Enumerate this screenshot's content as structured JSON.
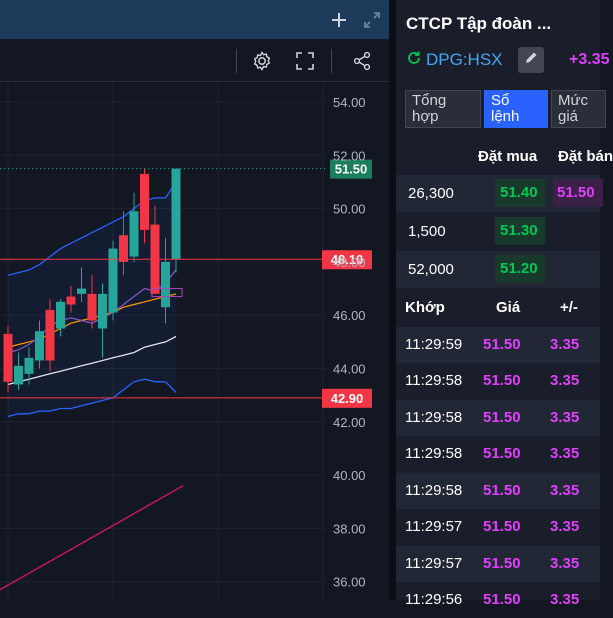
{
  "toolbar": {
    "icons": [
      "plus-icon",
      "expand-icon",
      "gear-icon",
      "fullscreen-icon",
      "share-icon"
    ]
  },
  "colors": {
    "up": "#26a69a",
    "down": "#f23645",
    "accent": "#2962ff",
    "bid_green": "#00c853",
    "ask_magenta": "#e040fb"
  },
  "chart_data": {
    "type": "candlestick",
    "y_axis": {
      "ticks": [
        "54.00",
        "52.00",
        "50.00",
        "48.00",
        "46.00",
        "44.00",
        "42.00",
        "40.00",
        "38.00",
        "36.00"
      ],
      "range": [
        35.5,
        55.5
      ]
    },
    "price_labels": [
      {
        "label": "51.50",
        "value": 51.5,
        "kind": "last"
      },
      {
        "label": "48.10",
        "value": 48.1,
        "kind": "level"
      },
      {
        "label": "42.90",
        "value": 42.9,
        "kind": "level"
      }
    ],
    "candles": [
      {
        "o": 45.3,
        "h": 45.6,
        "l": 43.1,
        "c": 43.5
      },
      {
        "o": 43.4,
        "h": 44.6,
        "l": 43.2,
        "c": 44.1
      },
      {
        "o": 43.8,
        "h": 44.8,
        "l": 43.4,
        "c": 44.4
      },
      {
        "o": 44.3,
        "h": 45.8,
        "l": 44.0,
        "c": 45.4
      },
      {
        "o": 46.2,
        "h": 46.6,
        "l": 43.9,
        "c": 44.3
      },
      {
        "o": 45.5,
        "h": 46.6,
        "l": 45.2,
        "c": 46.5
      },
      {
        "o": 46.7,
        "h": 47.1,
        "l": 46.1,
        "c": 46.4
      },
      {
        "o": 46.8,
        "h": 47.8,
        "l": 46.5,
        "c": 47.0
      },
      {
        "o": 46.8,
        "h": 47.5,
        "l": 45.5,
        "c": 45.8
      },
      {
        "o": 45.5,
        "h": 47.2,
        "l": 44.4,
        "c": 46.8
      },
      {
        "o": 46.1,
        "h": 48.8,
        "l": 45.8,
        "c": 48.5
      },
      {
        "o": 49.0,
        "h": 49.9,
        "l": 47.5,
        "c": 48.0
      },
      {
        "o": 48.2,
        "h": 50.6,
        "l": 48.0,
        "c": 49.9
      },
      {
        "o": 51.3,
        "h": 51.5,
        "l": 48.7,
        "c": 49.2
      },
      {
        "o": 49.4,
        "h": 50.1,
        "l": 46.9,
        "c": 46.8
      },
      {
        "o": 46.3,
        "h": 48.9,
        "l": 45.7,
        "c": 48.0
      },
      {
        "o": 48.1,
        "h": 51.5,
        "l": 47.6,
        "c": 51.5
      }
    ],
    "bands": {
      "upper": [
        47.5,
        47.6,
        47.7,
        47.9,
        48.2,
        48.5,
        48.7,
        48.9,
        49.1,
        49.3,
        49.5,
        49.7,
        50.0,
        50.3,
        50.4,
        50.4,
        51.0
      ],
      "lower": [
        42.2,
        42.3,
        42.3,
        42.4,
        42.4,
        42.5,
        42.5,
        42.6,
        42.7,
        42.8,
        42.9,
        43.2,
        43.5,
        43.6,
        43.5,
        43.5,
        43.1
      ]
    },
    "lines": {
      "white_ma": [
        43.4,
        43.5,
        43.6,
        43.7,
        43.8,
        43.9,
        44.0,
        44.1,
        44.2,
        44.3,
        44.4,
        44.5,
        44.6,
        44.8,
        44.9,
        45.0,
        45.2
      ],
      "orange_ma": [
        44.8,
        44.9,
        45.0,
        45.1,
        45.3,
        45.5,
        45.7,
        45.8,
        45.9,
        46.0,
        46.1,
        46.3,
        46.4,
        46.5,
        46.6,
        46.7,
        46.8
      ],
      "purple_ma": [
        44.6,
        44.7,
        44.9,
        45.2,
        45.6,
        45.8,
        45.9,
        45.8,
        45.7,
        45.9,
        46.1,
        46.4,
        46.7,
        47.0,
        46.9,
        47.2,
        47.7
      ]
    },
    "red_trend": {
      "start": 35.7,
      "end": 39.6
    }
  },
  "panel": {
    "company_name": "CTCP Tập đoàn ...",
    "ticker": "DPG:HSX",
    "change": "+3.35",
    "tabs": [
      {
        "label": "Tổng hợp",
        "active": false
      },
      {
        "label": "Sổ lệnh",
        "active": true
      },
      {
        "label": "Mức giá",
        "active": false
      }
    ],
    "orderbook": {
      "bid_header": "Đặt mua",
      "ask_header": "Đặt bán",
      "rows": [
        {
          "volume": "26,300",
          "bid": "51.40",
          "ask": "51.50"
        },
        {
          "volume": "1,500",
          "bid": "51.30",
          "ask": ""
        },
        {
          "volume": "52,000",
          "bid": "51.20",
          "ask": ""
        }
      ]
    },
    "trades": {
      "headers": {
        "time": "Khớp",
        "price": "Giá",
        "change": "+/-"
      },
      "rows": [
        {
          "time": "11:29:59",
          "price": "51.50",
          "change": "3.35"
        },
        {
          "time": "11:29:58",
          "price": "51.50",
          "change": "3.35"
        },
        {
          "time": "11:29:58",
          "price": "51.50",
          "change": "3.35"
        },
        {
          "time": "11:29:58",
          "price": "51.50",
          "change": "3.35"
        },
        {
          "time": "11:29:58",
          "price": "51.50",
          "change": "3.35"
        },
        {
          "time": "11:29:57",
          "price": "51.50",
          "change": "3.35"
        },
        {
          "time": "11:29:57",
          "price": "51.50",
          "change": "3.35"
        },
        {
          "time": "11:29:56",
          "price": "51.50",
          "change": "3.35"
        }
      ]
    }
  }
}
